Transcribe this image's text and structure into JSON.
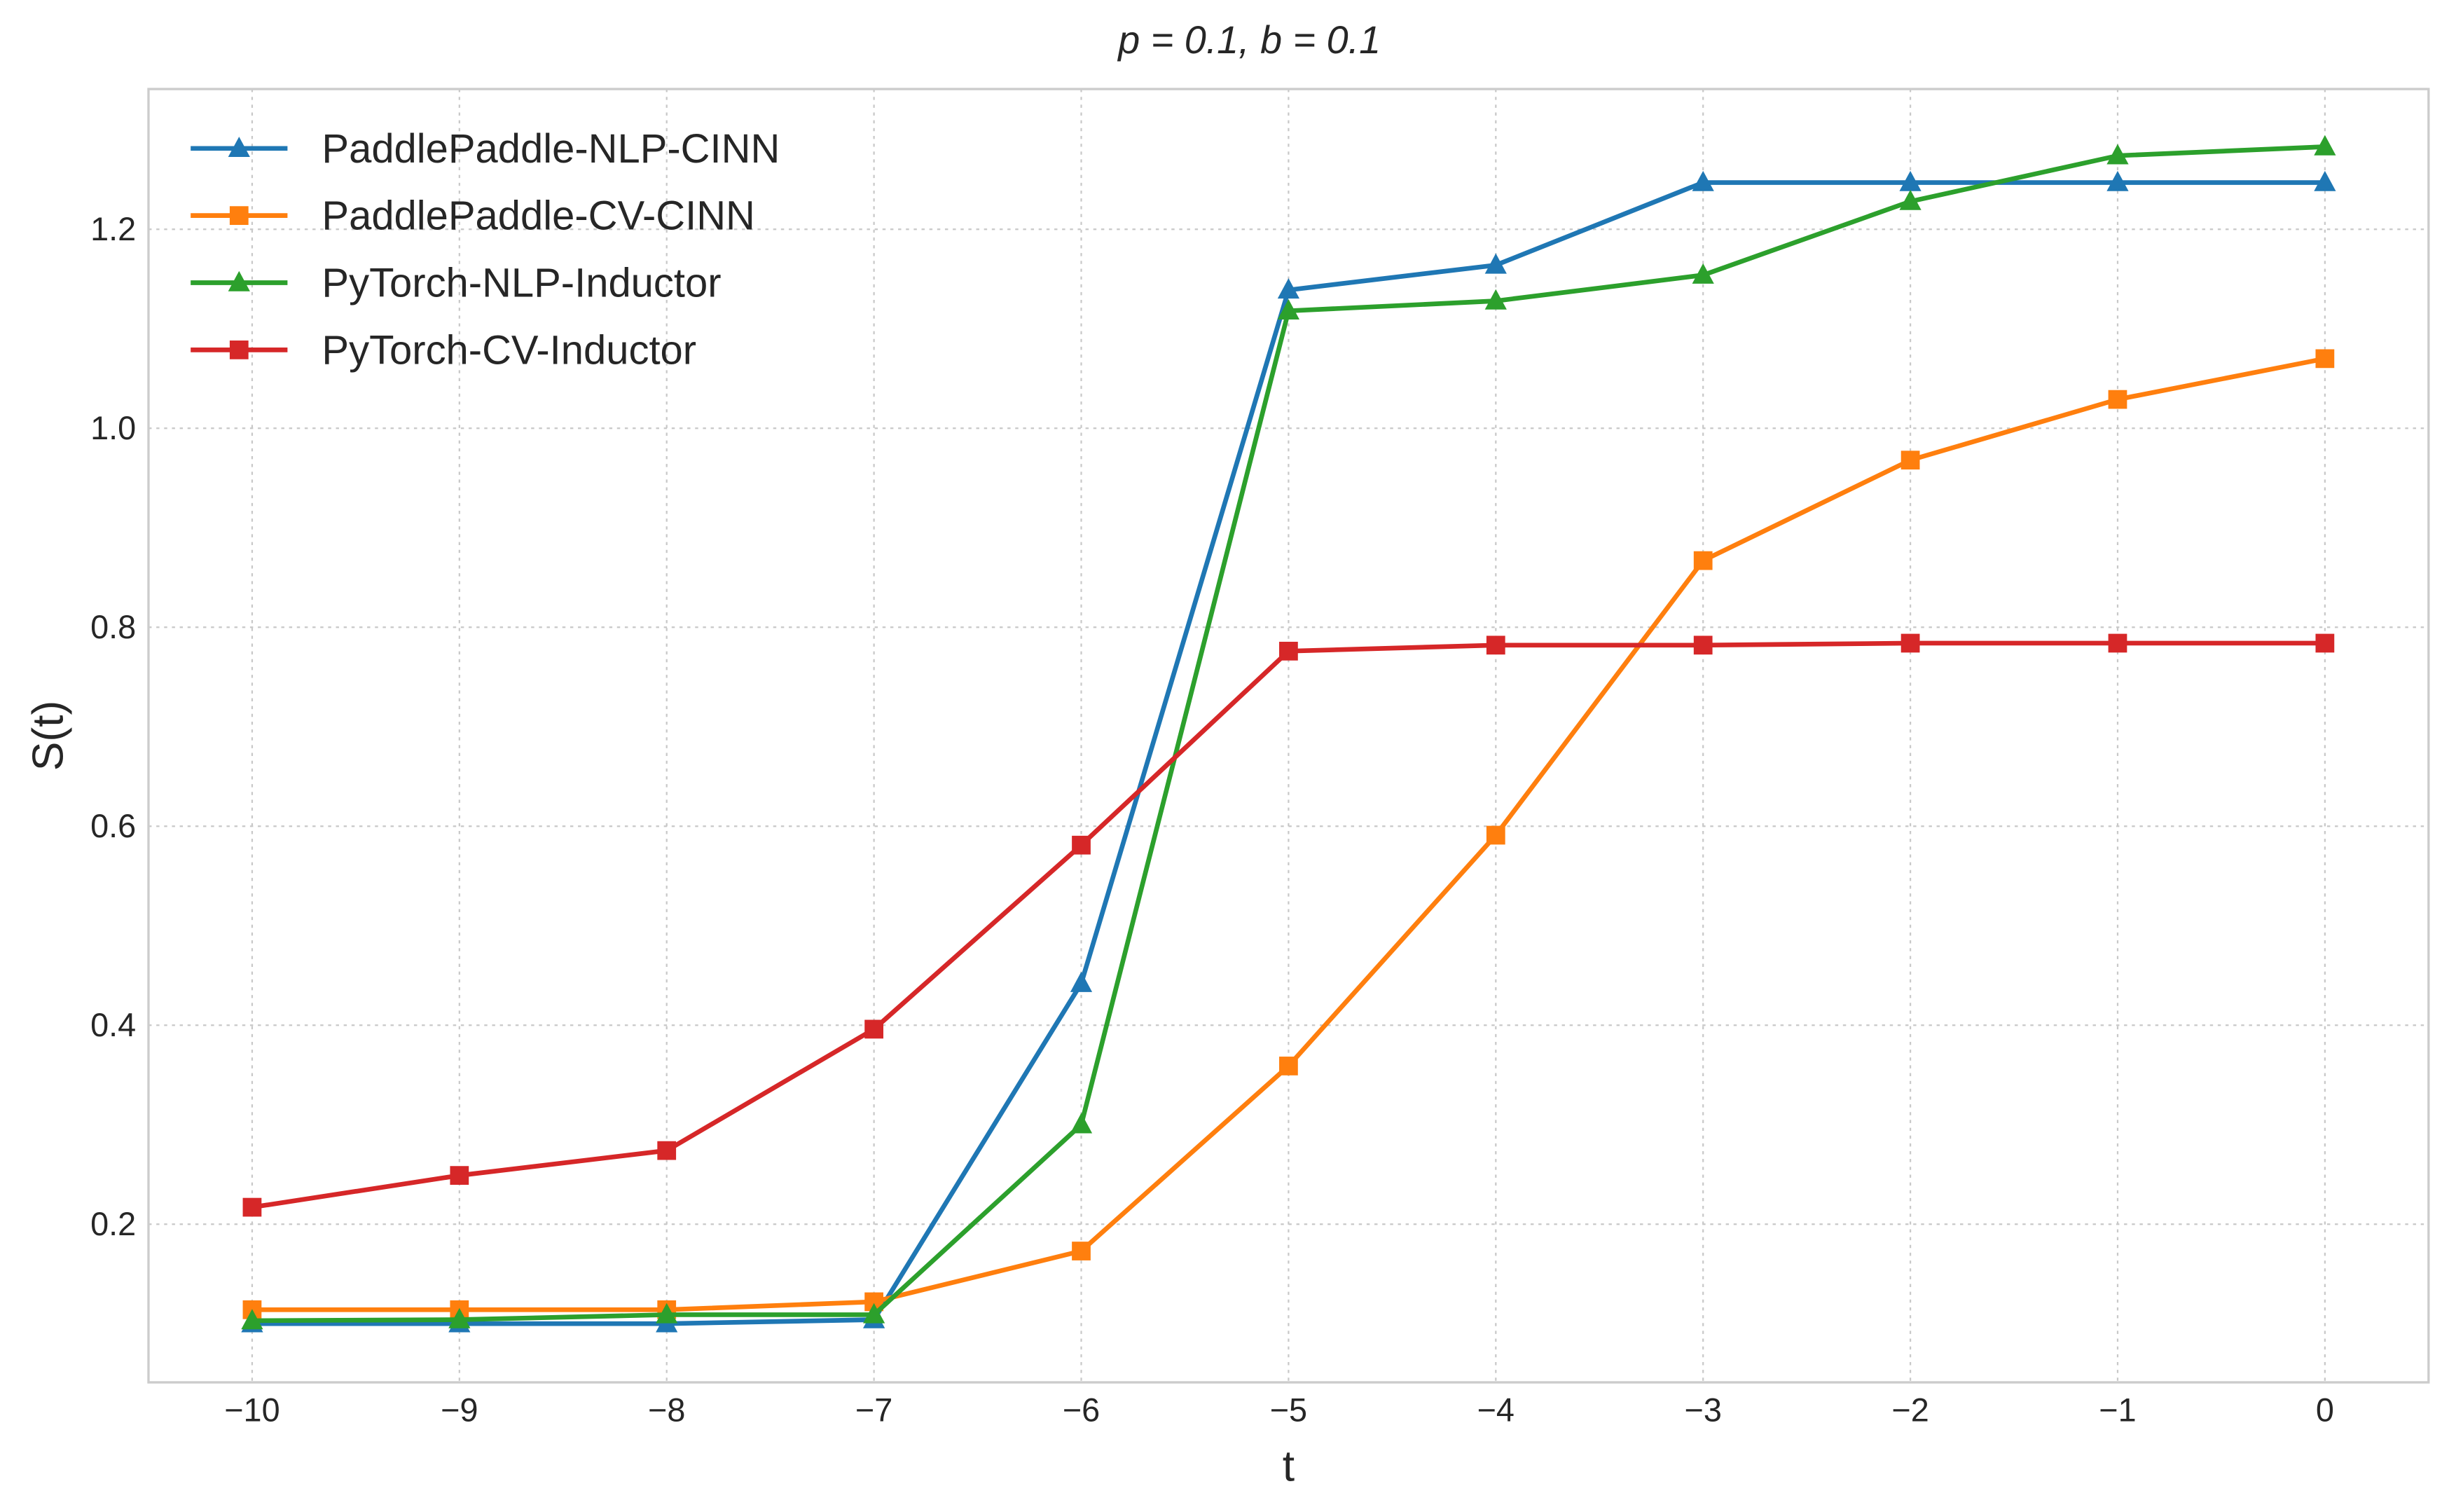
{
  "chart_data": {
    "type": "line",
    "title": "p = 0.1, b = 0.1",
    "xlabel": "t",
    "ylabel": "S(t)",
    "xlim": [
      -10.5,
      0.5
    ],
    "ylim": [
      0.041,
      1.341
    ],
    "grid": true,
    "legend_position": "top-left",
    "x": [
      -10,
      -9,
      -8,
      -7,
      -6,
      -5,
      -4,
      -3,
      -2,
      -1,
      0
    ],
    "x_tick_labels": [
      "−10",
      "−9",
      "−8",
      "−7",
      "−6",
      "−5",
      "−4",
      "−3",
      "−2",
      "−1",
      "0"
    ],
    "y_ticks": [
      0.2,
      0.4,
      0.6,
      0.8,
      1.0,
      1.2
    ],
    "y_tick_labels": [
      "0.2",
      "0.4",
      "0.6",
      "0.8",
      "1.0",
      "1.2"
    ],
    "series": [
      {
        "name": "PaddlePaddle-NLP-CINN",
        "color": "#1f77b4",
        "marker": "triangle",
        "values": [
          0.1,
          0.1,
          0.1,
          0.104,
          0.442,
          1.139,
          1.164,
          1.247,
          1.247,
          1.247,
          1.247
        ]
      },
      {
        "name": "PaddlePaddle-CV-CINN",
        "color": "#ff7f0e",
        "marker": "square",
        "values": [
          0.114,
          0.114,
          0.114,
          0.122,
          0.173,
          0.359,
          0.591,
          0.867,
          0.968,
          1.029,
          1.07
        ]
      },
      {
        "name": "PyTorch-NLP-Inductor",
        "color": "#2ca02c",
        "marker": "triangle",
        "values": [
          0.103,
          0.104,
          0.109,
          0.109,
          0.3,
          1.118,
          1.128,
          1.154,
          1.228,
          1.274,
          1.283
        ]
      },
      {
        "name": "PyTorch-CV-Inductor",
        "color": "#d62728",
        "marker": "square",
        "values": [
          0.217,
          0.249,
          0.274,
          0.396,
          0.581,
          0.776,
          0.782,
          0.782,
          0.784,
          0.784,
          0.784
        ]
      }
    ]
  }
}
